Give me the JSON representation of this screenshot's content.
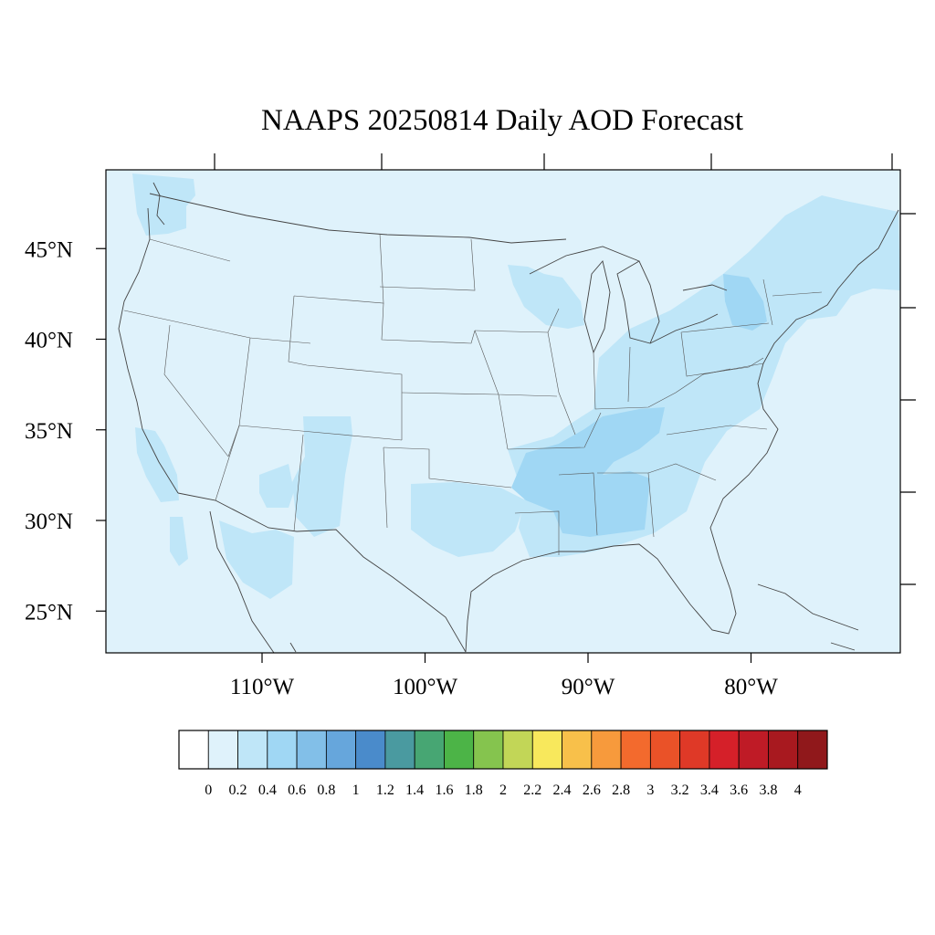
{
  "title": "NAAPS 20250814 Daily AOD Forecast",
  "map": {
    "background_color": "#dff2fb",
    "lat_labels": [
      {
        "lat": 45,
        "label": "45°N"
      },
      {
        "lat": 40,
        "label": "40°N"
      },
      {
        "lat": 35,
        "label": "35°N"
      },
      {
        "lat": 30,
        "label": "30°N"
      },
      {
        "lat": 25,
        "label": "25°N"
      }
    ],
    "lon_labels": [
      {
        "lon": -110,
        "label": "110°W"
      },
      {
        "lon": -100,
        "label": "100°W"
      },
      {
        "lon": -90,
        "label": "90°W"
      },
      {
        "lon": -80,
        "label": "80°W"
      }
    ]
  },
  "colorbar": {
    "colors": [
      "#ffffff",
      "#dff2fb",
      "#bfe6f8",
      "#a0d7f4",
      "#82bfe8",
      "#66a6dc",
      "#4a8bcb",
      "#4a9aa0",
      "#47a673",
      "#4cb447",
      "#85c44e",
      "#c2d657",
      "#f8e85c",
      "#f8c04a",
      "#f79a3c",
      "#f36a2d",
      "#ea5228",
      "#df3927",
      "#d52029",
      "#bf1b26",
      "#a8191f",
      "#90181b"
    ],
    "labels": [
      "0",
      "0.2",
      "0.4",
      "0.6",
      "0.8",
      "1",
      "1.2",
      "1.4",
      "1.6",
      "1.8",
      "2",
      "2.2",
      "2.4",
      "2.6",
      "2.8",
      "3",
      "3.2",
      "3.4",
      "3.6",
      "3.8",
      "4"
    ]
  }
}
